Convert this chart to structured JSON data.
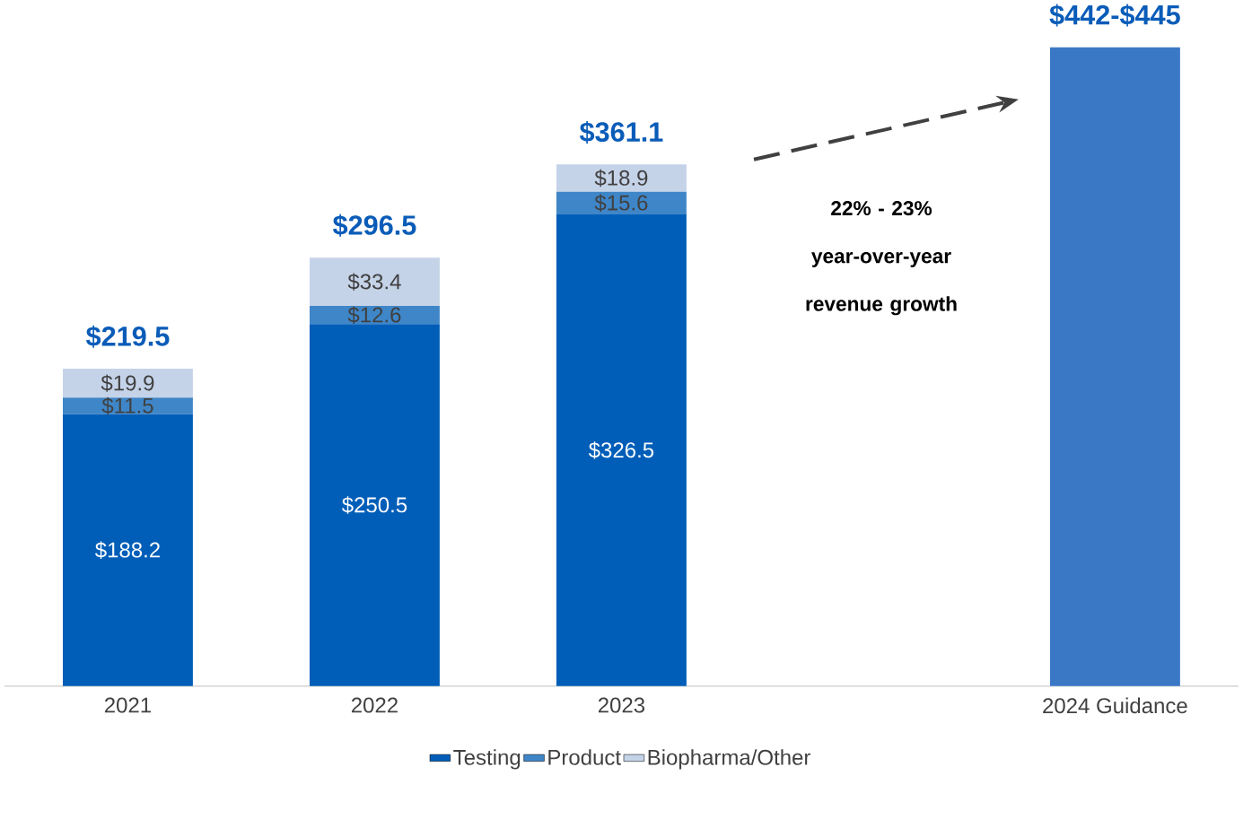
{
  "chart_data": {
    "type": "bar",
    "stacked": true,
    "categories": [
      "2021",
      "2022",
      "2023",
      null,
      "2024 Guidance"
    ],
    "series": [
      {
        "name": "Testing",
        "color": "#005eb8",
        "values": [
          188.2,
          250.5,
          326.5,
          null,
          null
        ],
        "value_labels": [
          "$188.2",
          "$250.5",
          "$326.5",
          null,
          null
        ]
      },
      {
        "name": "Product",
        "color": "#3f86c8",
        "values": [
          11.5,
          12.6,
          15.6,
          null,
          null
        ],
        "value_labels": [
          "$11.5",
          "$12.6",
          "$15.6",
          null,
          null
        ]
      },
      {
        "name": "Biopharma/Other",
        "color": "#c5d3e8",
        "values": [
          19.9,
          33.4,
          18.9,
          null,
          null
        ],
        "value_labels": [
          "$19.9",
          "$33.4",
          "$18.9",
          null,
          null
        ]
      },
      {
        "color": "#3a78c6",
        "values": [
          null,
          null,
          null,
          null,
          442
        ]
      }
    ],
    "totals": [
      "$219.5",
      "$296.5",
      "$361.1",
      null,
      "$442-$445"
    ],
    "annotations": [
      "22% - 23%\nyear-over-year\nrevenue growth"
    ],
    "legend": "bottom"
  }
}
